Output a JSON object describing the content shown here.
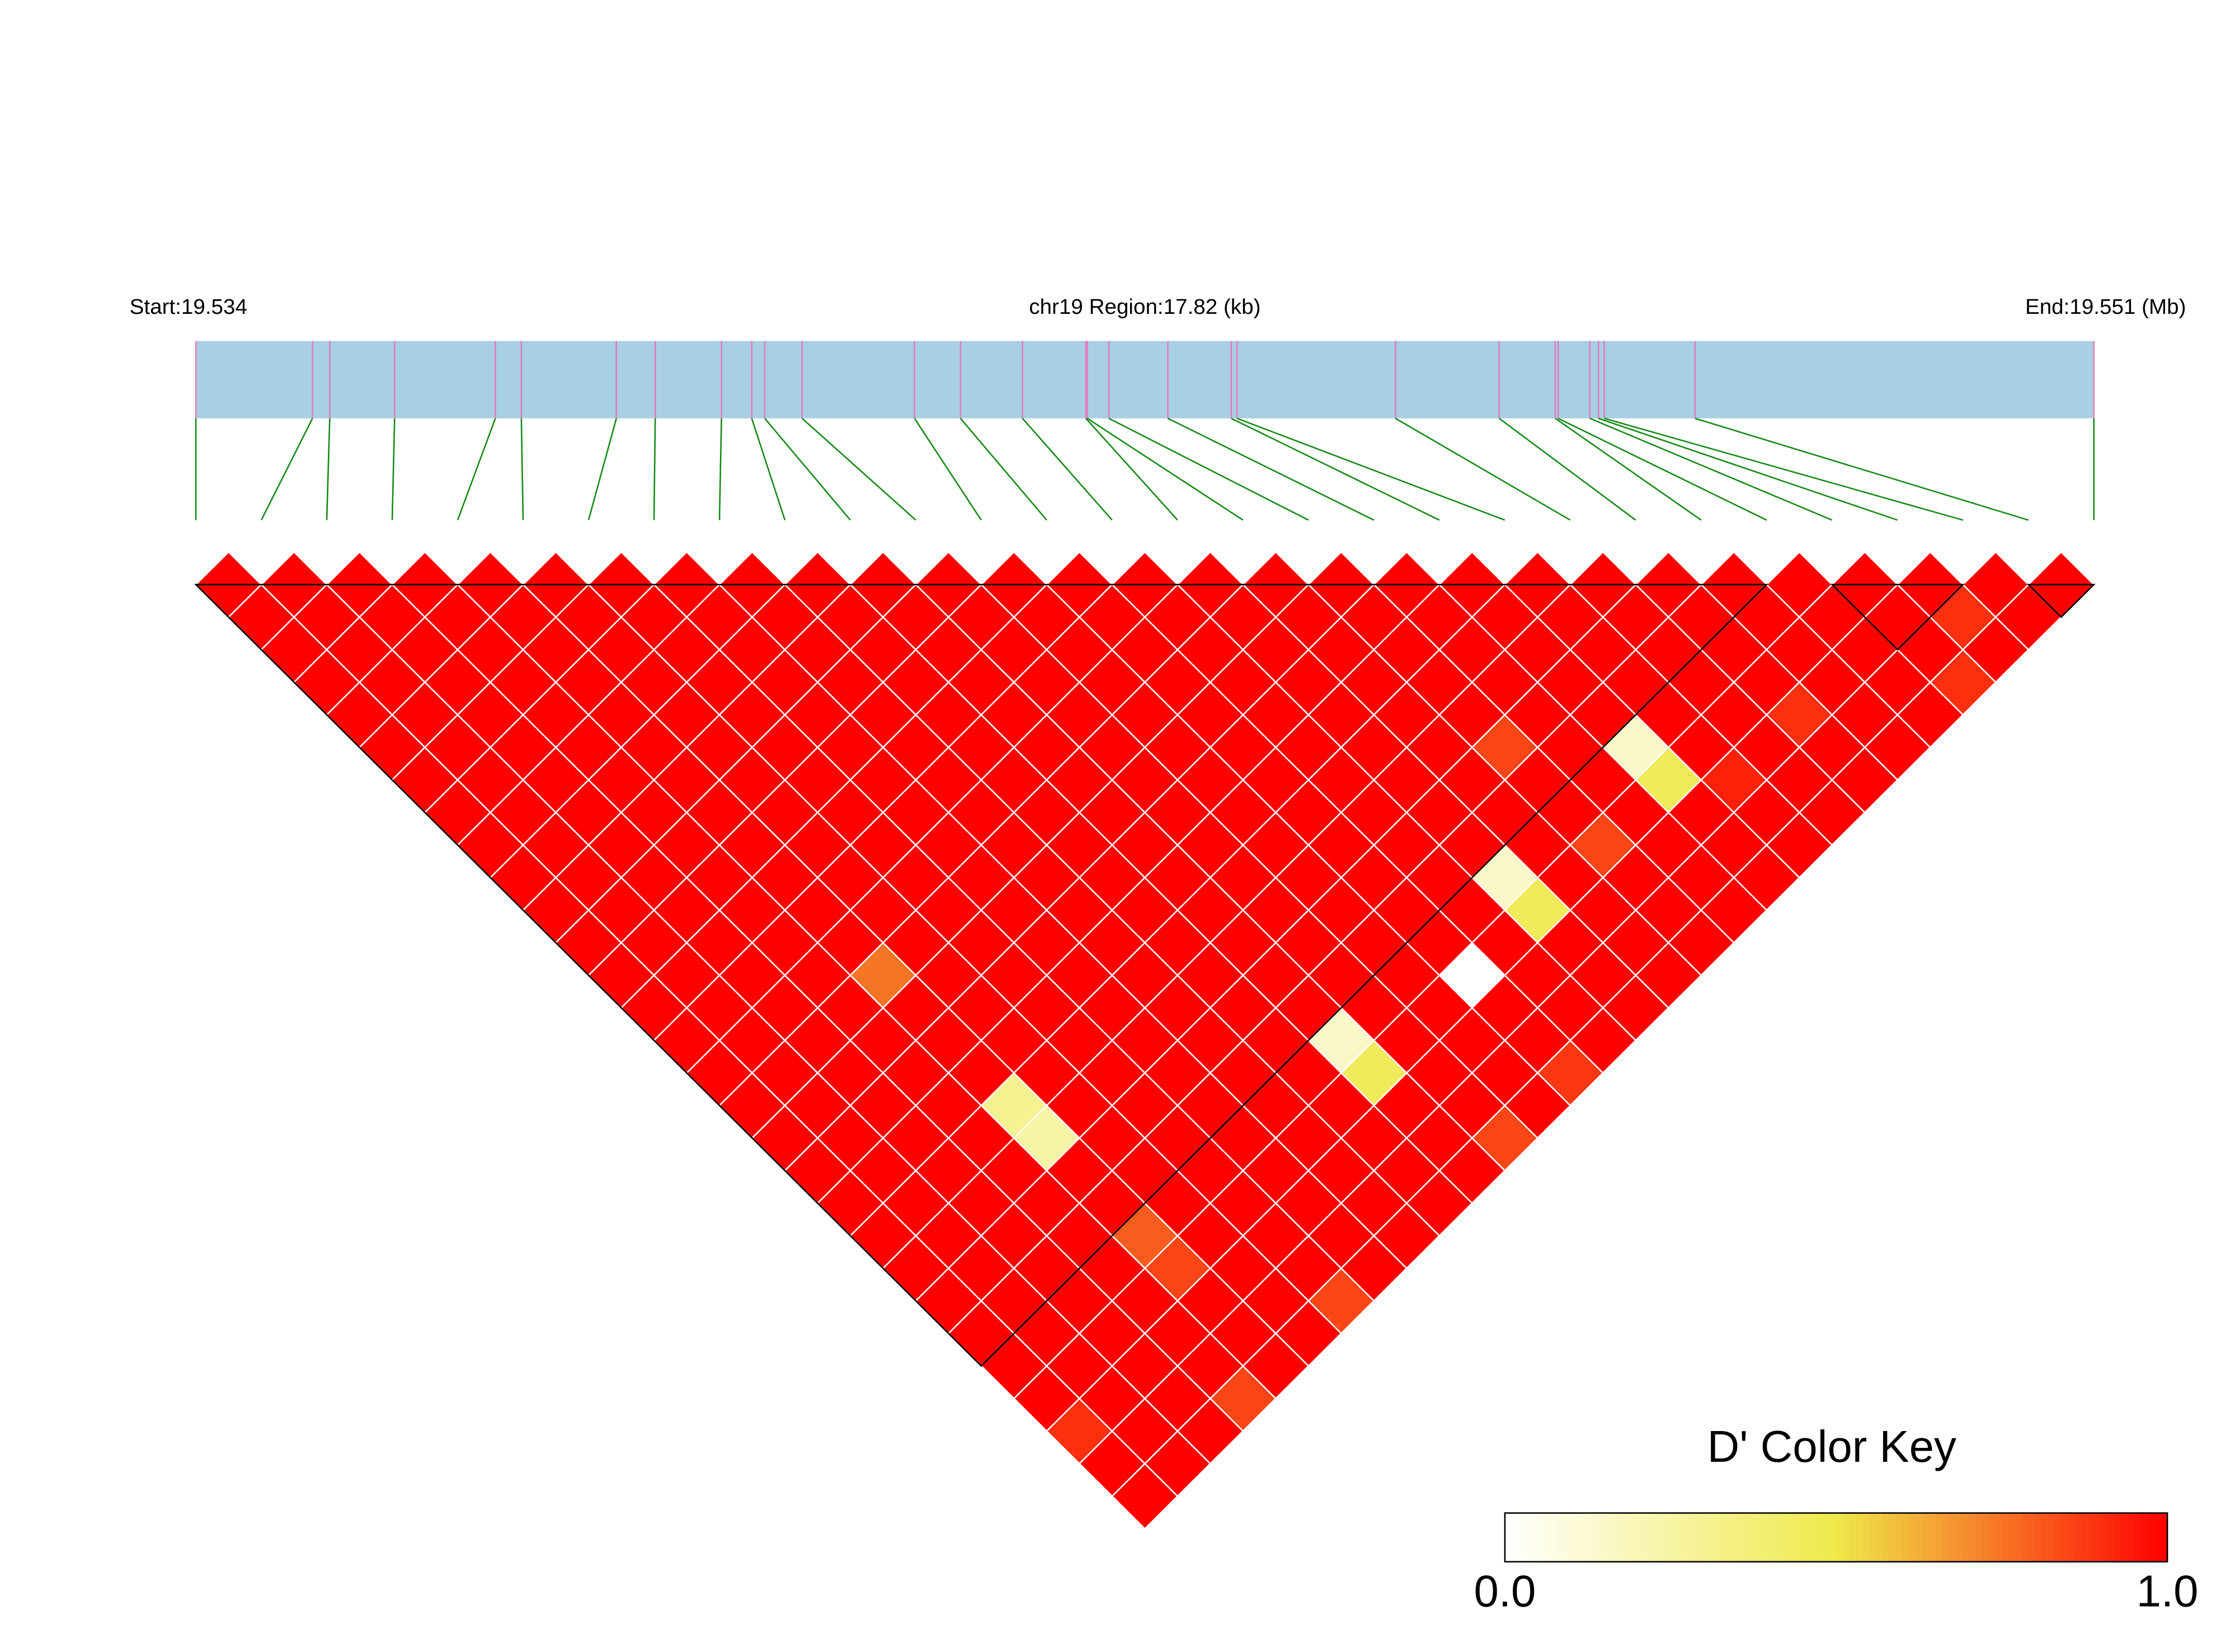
{
  "chart_data": {
    "type": "ld_heatmap",
    "start_label": "Start:19.534",
    "region_label": "chr19 Region:17.82 (kb)",
    "end_label": "End:19.551 (Mb)",
    "xlim": [
      0,
      17.82
    ],
    "snp_positions": [
      0,
      1.095,
      1.257,
      1.866,
      2.812,
      3.056,
      3.948,
      4.313,
      4.935,
      5.219,
      5.341,
      5.692,
      6.747,
      7.179,
      7.761,
      8.356,
      8.369,
      8.572,
      9.126,
      9.721,
      9.775,
      11.263,
      12.236,
      12.763,
      12.79,
      13.088,
      13.169,
      13.223,
      14.075,
      17.82
    ],
    "ld_matrix": [
      [
        1,
        1,
        1,
        1,
        1,
        1,
        1,
        1,
        1,
        1,
        1,
        1,
        1,
        1,
        1,
        1,
        1,
        1,
        1,
        1,
        1,
        1,
        1,
        1,
        1,
        1,
        0.9,
        1,
        1
      ],
      [
        1,
        1,
        1,
        1,
        1,
        1,
        1,
        1,
        1,
        1,
        1,
        1,
        1,
        1,
        1,
        1,
        1,
        1,
        1,
        1,
        1,
        1,
        1,
        1,
        1,
        1,
        1,
        1
      ],
      [
        1,
        1,
        1,
        1,
        1,
        1,
        1,
        1,
        1,
        1,
        1,
        1,
        1,
        1,
        1,
        1,
        1,
        1,
        1,
        1,
        1,
        1,
        1,
        1,
        1,
        1,
        1
      ],
      [
        1,
        1,
        1,
        1,
        1,
        1,
        1,
        1,
        1,
        1,
        1,
        1,
        1,
        1,
        1,
        1,
        1,
        1,
        1,
        1,
        1,
        1,
        1,
        1,
        1,
        0.85
      ],
      [
        1,
        1,
        1,
        1,
        1,
        1,
        1,
        1,
        1,
        1,
        1,
        1,
        0.75,
        1,
        1,
        1,
        0.3,
        0.25,
        1,
        1,
        0.8,
        0.85,
        1,
        1,
        1
      ],
      [
        1,
        1,
        1,
        1,
        1,
        1,
        1,
        1,
        1,
        1,
        1,
        1,
        1,
        1,
        1,
        1,
        1,
        1,
        1,
        1,
        1,
        1,
        1,
        1
      ],
      [
        1,
        1,
        1,
        1,
        1,
        1,
        1,
        1,
        1,
        1,
        1,
        1,
        1,
        1,
        1,
        1,
        1,
        1,
        1,
        1,
        1,
        1,
        0.85
      ],
      [
        1,
        1,
        1,
        1,
        1,
        1,
        1,
        1,
        1,
        1,
        1,
        1,
        1,
        1,
        1,
        1,
        1,
        1,
        1,
        1,
        1,
        1
      ],
      [
        1,
        1,
        1,
        1,
        1,
        1,
        1,
        1,
        1,
        1,
        1,
        1,
        1,
        1,
        1,
        1,
        1,
        1,
        1,
        1,
        1
      ],
      [
        1,
        1,
        1,
        1,
        1,
        1,
        1,
        1,
        1,
        1,
        1,
        1,
        1,
        1,
        1,
        1,
        1,
        1,
        1,
        1
      ],
      [
        1,
        1,
        1,
        1,
        1,
        1,
        1,
        1,
        1,
        1,
        1,
        1,
        1,
        1,
        0.15,
        0.45,
        1,
        1,
        1
      ],
      [
        1,
        1,
        1,
        1,
        1,
        1,
        1,
        1,
        1,
        1,
        1,
        1,
        1,
        1,
        1,
        1,
        1,
        0.85
      ],
      [
        1,
        1,
        1,
        1,
        1,
        1,
        1,
        1,
        1,
        1,
        1,
        1,
        1,
        1,
        1,
        1,
        1
      ],
      [
        1,
        1,
        1,
        1,
        1,
        1,
        1,
        1,
        1,
        1,
        1,
        1,
        0,
        1,
        1,
        0.88
      ],
      [
        1,
        1,
        1,
        1,
        1,
        1,
        1,
        1,
        1,
        1,
        1,
        1,
        1,
        1,
        1
      ],
      [
        1,
        1,
        1,
        1,
        1,
        1,
        1,
        1,
        1,
        0.15,
        0.45,
        1,
        1,
        1
      ],
      [
        1,
        1,
        1,
        1,
        1,
        1,
        1,
        1,
        1,
        1,
        1,
        1,
        1
      ],
      [
        1,
        1,
        1,
        1,
        1,
        0.85,
        1,
        1,
        0.85,
        1,
        1,
        1
      ],
      [
        1,
        1,
        1,
        1,
        1,
        1,
        1,
        1,
        1,
        1,
        1
      ],
      [
        1,
        1,
        1,
        1,
        1,
        0.15,
        0.45,
        1,
        1,
        1
      ],
      [
        1,
        1,
        1,
        1,
        1,
        1,
        0.93,
        1,
        1
      ],
      [
        1,
        1,
        1,
        1,
        1,
        1,
        1,
        1
      ],
      [
        1,
        1,
        1,
        1,
        0.9,
        1,
        1
      ],
      [
        1,
        1,
        1,
        1,
        1,
        1
      ],
      [
        1,
        1,
        1,
        1,
        1
      ],
      [
        1,
        1,
        1,
        0.9
      ],
      [
        1,
        0.9,
        1
      ],
      [
        1,
        1
      ],
      [
        1
      ]
    ],
    "ld_blocks": [
      [
        0,
        24
      ],
      [
        25,
        27
      ],
      [
        28,
        29
      ]
    ],
    "bar_color": "#a9cfe2",
    "snp_line_color": "#e07cc0",
    "link_color": "#138a13",
    "block_color": "#000000",
    "colorbar": {
      "title": "D' Color Key",
      "clim": [
        0,
        1
      ],
      "colors": [
        "#ffffff",
        "#efe94a",
        "#ff0000"
      ],
      "ticks": [
        {
          "value": 0,
          "label": "0.0"
        },
        {
          "value": 1,
          "label": "1.0"
        }
      ]
    }
  }
}
